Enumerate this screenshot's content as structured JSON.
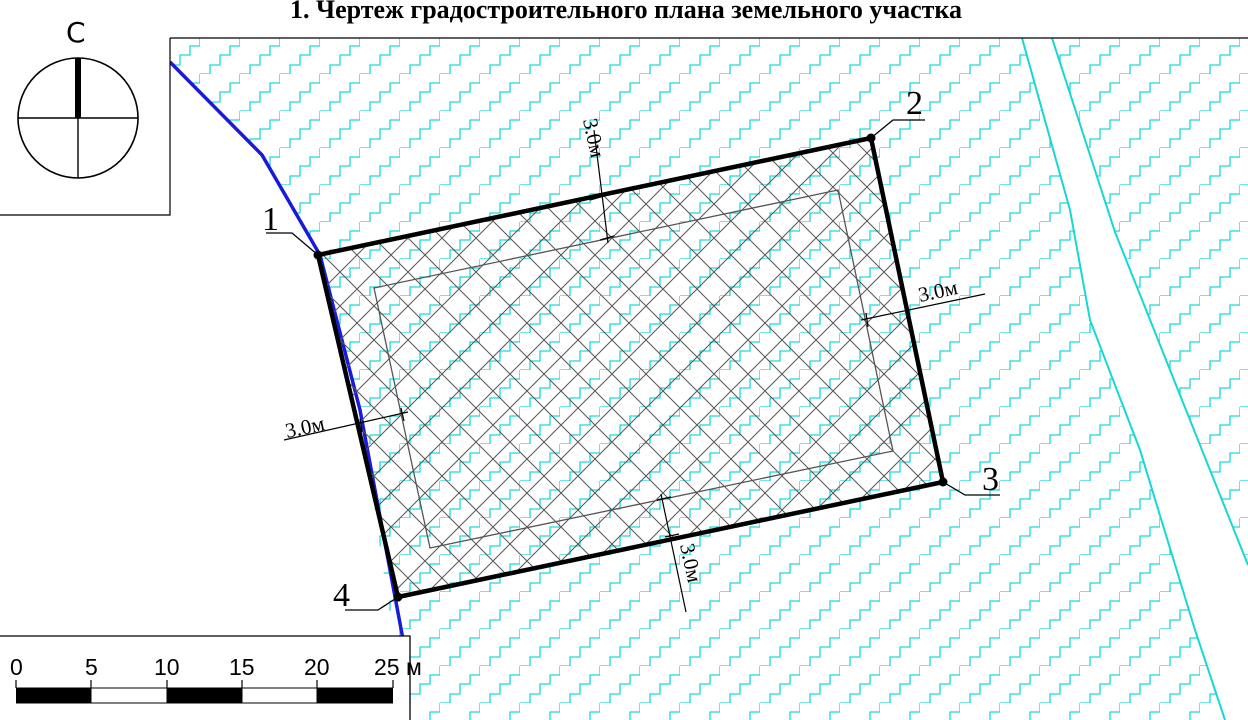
{
  "title": "1. Чертеж градостроительного плана земельного участка",
  "north_arrow": {
    "label": "С"
  },
  "corner_points": [
    "1",
    "2",
    "3",
    "4"
  ],
  "setbacks": [
    "3.0м",
    "3.0м",
    "3.0м",
    "3.0м"
  ],
  "scale_bar": {
    "ticks": [
      "0",
      "5",
      "10",
      "15",
      "20",
      "25 м"
    ]
  },
  "legend_colors": {
    "hatch_zone": "#1ad9d9",
    "river": "#19d6d6",
    "boundary_line": "#1a1adb",
    "plot_outline": "#000000",
    "plot_hatch": "#555555"
  }
}
